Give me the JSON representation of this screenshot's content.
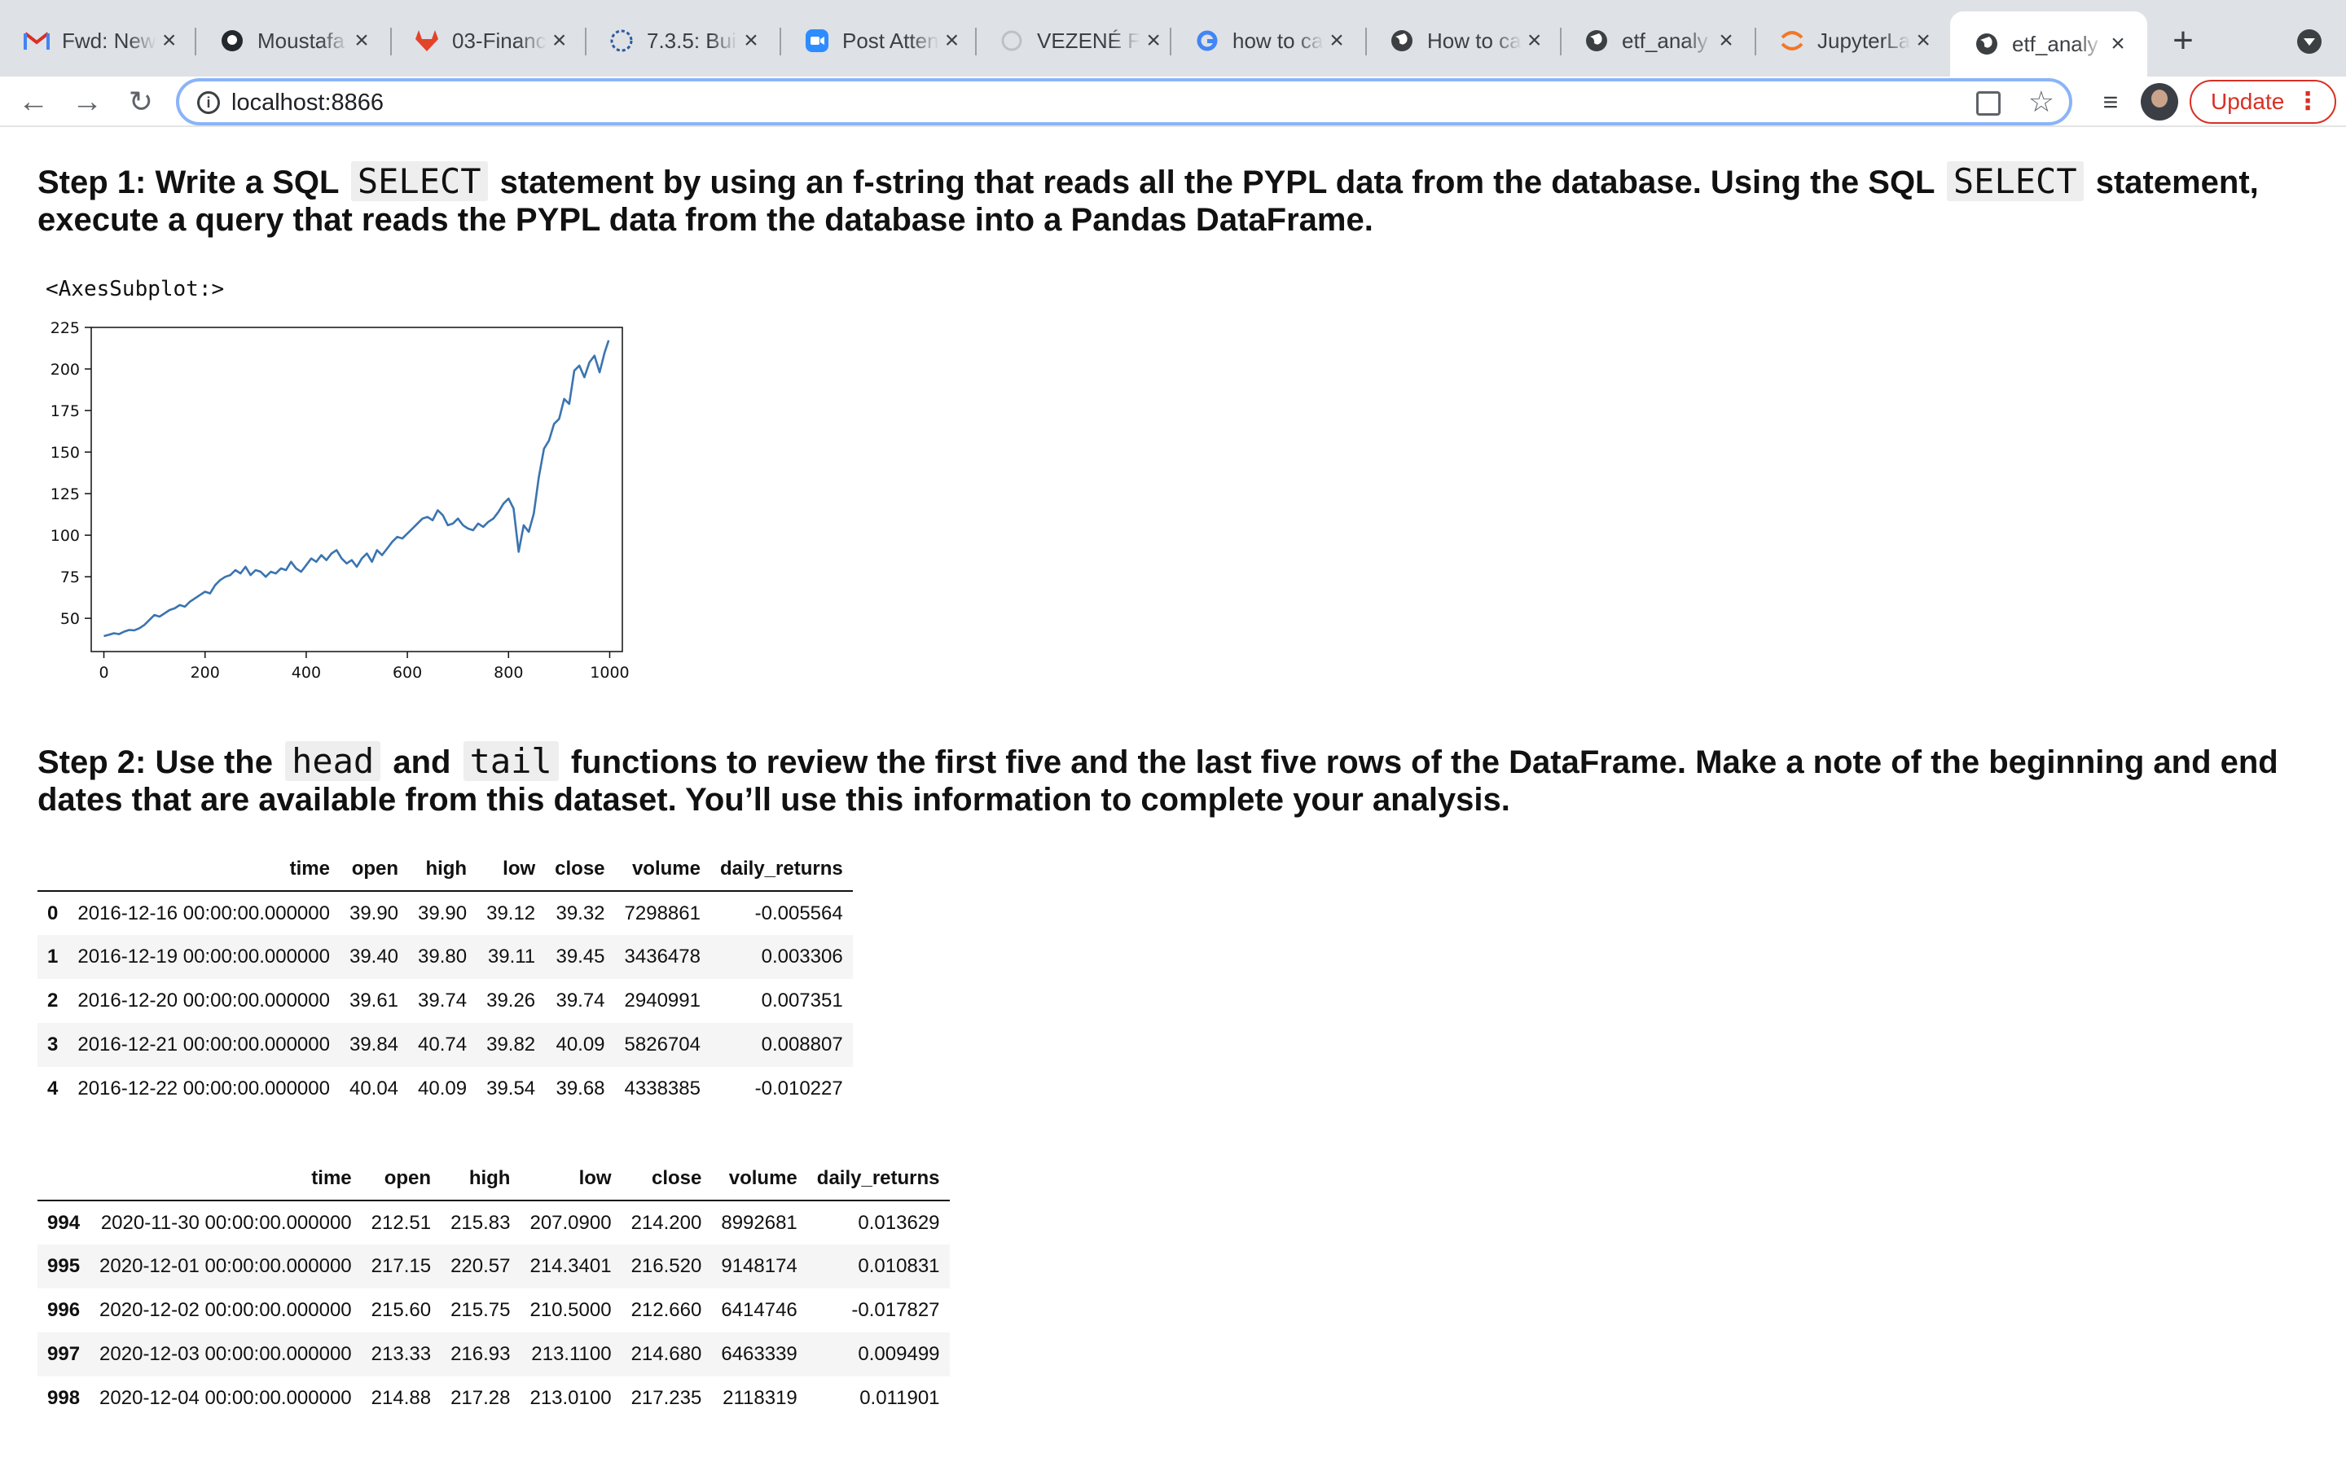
{
  "browser": {
    "tabs": [
      {
        "title": "Fwd: New",
        "icon": "gmail-icon"
      },
      {
        "title": "Moustafa",
        "icon": "github-icon"
      },
      {
        "title": "03-Financ",
        "icon": "gitlab-icon"
      },
      {
        "title": "7.3.5: Bui",
        "icon": "canvas-icon"
      },
      {
        "title": "Post Atten",
        "icon": "zoom-icon"
      },
      {
        "title": "VEZENÉ F",
        "icon": "loading-icon"
      },
      {
        "title": "how to ca",
        "icon": "google-icon"
      },
      {
        "title": "How to ca",
        "icon": "globe-icon"
      },
      {
        "title": "etf_analy",
        "icon": "globe-icon"
      },
      {
        "title": "JupyterLa",
        "icon": "jupyter-icon"
      },
      {
        "title": "etf_analy",
        "icon": "globe-icon",
        "active": true
      }
    ],
    "url": "localhost:8866",
    "update_label": "Update"
  },
  "notebook": {
    "step1": {
      "parts": [
        "Step 1: Write a SQL ",
        "SELECT",
        " statement by using an f-string that reads all the PYPL data from the database. Using the SQL ",
        "SELECT",
        " statement, execute a query that reads the PYPL data from the database into a Pandas DataFrame."
      ]
    },
    "plot_output_label": "<AxesSubplot:>",
    "step2": {
      "parts": [
        "Step 2: Use the ",
        "head",
        " and ",
        "tail",
        " functions to review the first five and the last five rows of the DataFrame. Make a note of the beginning and end dates that are available from this dataset. You’ll use this information to complete your analysis."
      ]
    },
    "head_table": {
      "columns": [
        "",
        "time",
        "open",
        "high",
        "low",
        "close",
        "volume",
        "daily_returns"
      ],
      "rows": [
        [
          "0",
          "2016-12-16 00:00:00.000000",
          "39.90",
          "39.90",
          "39.12",
          "39.32",
          "7298861",
          "-0.005564"
        ],
        [
          "1",
          "2016-12-19 00:00:00.000000",
          "39.40",
          "39.80",
          "39.11",
          "39.45",
          "3436478",
          "0.003306"
        ],
        [
          "2",
          "2016-12-20 00:00:00.000000",
          "39.61",
          "39.74",
          "39.26",
          "39.74",
          "2940991",
          "0.007351"
        ],
        [
          "3",
          "2016-12-21 00:00:00.000000",
          "39.84",
          "40.74",
          "39.82",
          "40.09",
          "5826704",
          "0.008807"
        ],
        [
          "4",
          "2016-12-22 00:00:00.000000",
          "40.04",
          "40.09",
          "39.54",
          "39.68",
          "4338385",
          "-0.010227"
        ]
      ]
    },
    "tail_table": {
      "columns": [
        "",
        "time",
        "open",
        "high",
        "low",
        "close",
        "volume",
        "daily_returns"
      ],
      "rows": [
        [
          "994",
          "2020-11-30 00:00:00.000000",
          "212.51",
          "215.83",
          "207.0900",
          "214.200",
          "8992681",
          "0.013629"
        ],
        [
          "995",
          "2020-12-01 00:00:00.000000",
          "217.15",
          "220.57",
          "214.3401",
          "216.520",
          "9148174",
          "0.010831"
        ],
        [
          "996",
          "2020-12-02 00:00:00.000000",
          "215.60",
          "215.75",
          "210.5000",
          "212.660",
          "6414746",
          "-0.017827"
        ],
        [
          "997",
          "2020-12-03 00:00:00.000000",
          "213.33",
          "216.93",
          "213.1100",
          "214.680",
          "6463339",
          "0.009499"
        ],
        [
          "998",
          "2020-12-04 00:00:00.000000",
          "214.88",
          "217.28",
          "213.0100",
          "217.235",
          "2118319",
          "0.011901"
        ]
      ]
    }
  },
  "chart_data": {
    "type": "line",
    "title": "",
    "xlabel": "",
    "ylabel": "",
    "xlim": [
      -25,
      1025
    ],
    "ylim": [
      30,
      225
    ],
    "xticks": [
      0,
      200,
      400,
      600,
      800,
      1000
    ],
    "yticks": [
      50,
      75,
      100,
      125,
      150,
      175,
      200,
      225
    ],
    "grid": false,
    "line_color": "#3a74b0",
    "series": [
      {
        "x": [
          0,
          10,
          20,
          30,
          40,
          50,
          60,
          70,
          80,
          90,
          100,
          110,
          120,
          130,
          140,
          150,
          160,
          170,
          180,
          190,
          200,
          210,
          220,
          230,
          240,
          250,
          260,
          270,
          280,
          290,
          300,
          310,
          320,
          330,
          340,
          350,
          360,
          370,
          380,
          390,
          400,
          410,
          420,
          430,
          440,
          450,
          460,
          470,
          480,
          490,
          500,
          510,
          520,
          530,
          540,
          550,
          560,
          570,
          580,
          590,
          600,
          610,
          620,
          630,
          640,
          650,
          660,
          670,
          680,
          690,
          700,
          710,
          720,
          730,
          740,
          750,
          760,
          770,
          780,
          790,
          800,
          810,
          820,
          830,
          840,
          850,
          860,
          870,
          880,
          890,
          900,
          910,
          920,
          930,
          940,
          950,
          960,
          970,
          980,
          990,
          998
        ],
        "values": [
          39.3,
          40.1,
          41,
          40.5,
          42,
          43,
          42.8,
          44,
          46,
          49,
          52,
          51,
          53,
          55,
          56,
          58,
          57,
          60,
          62,
          64,
          66,
          65,
          70,
          73,
          75,
          76,
          79,
          77,
          81,
          76,
          79,
          78,
          75,
          78,
          77,
          80,
          79,
          84,
          80,
          78,
          82,
          86,
          84,
          88,
          85,
          89,
          91,
          86,
          83,
          85,
          81,
          86,
          89,
          84,
          91,
          88,
          92,
          96,
          99,
          98,
          101,
          104,
          107,
          110,
          111,
          109,
          115,
          112,
          106,
          107,
          110,
          106,
          104,
          103,
          107,
          105,
          108,
          110,
          114,
          119,
          122,
          116,
          90,
          106,
          102,
          113,
          135,
          152,
          157,
          167,
          170,
          182,
          179,
          199,
          202,
          195,
          204,
          208,
          198,
          210,
          217.2
        ]
      }
    ]
  }
}
